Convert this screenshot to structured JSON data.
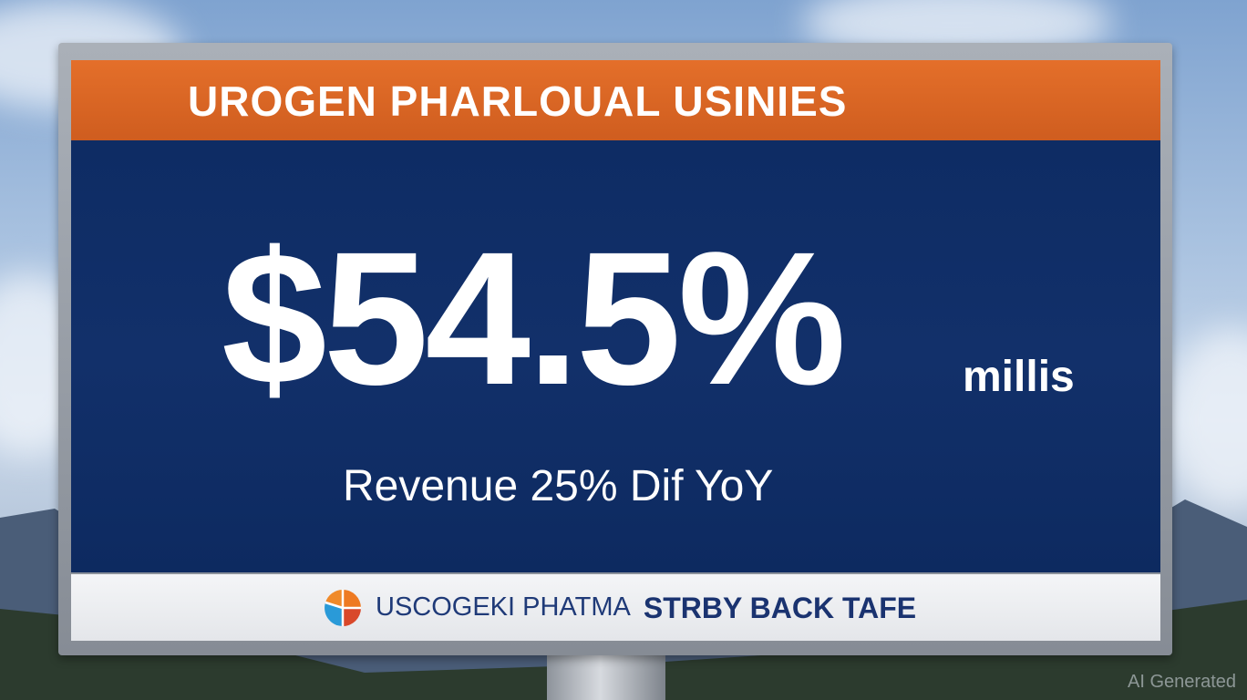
{
  "billboard": {
    "header_title": "UROGEN PHARLOUAL USINIES",
    "headline_value": "$54.5%",
    "headline_unit": "millis",
    "subline": "Revenue 25% Dif YoY",
    "footer": {
      "logo_icon": "segmented-circle-logo",
      "brand_name": "USCOGEKI PHATMA",
      "tagline": "STRBY BACK TAFE"
    },
    "colors": {
      "header": "#e06a27",
      "panel": "#10306a",
      "footer": "#eef0f3",
      "brand_text": "#1f3a78"
    }
  },
  "watermark": "AI Generated"
}
